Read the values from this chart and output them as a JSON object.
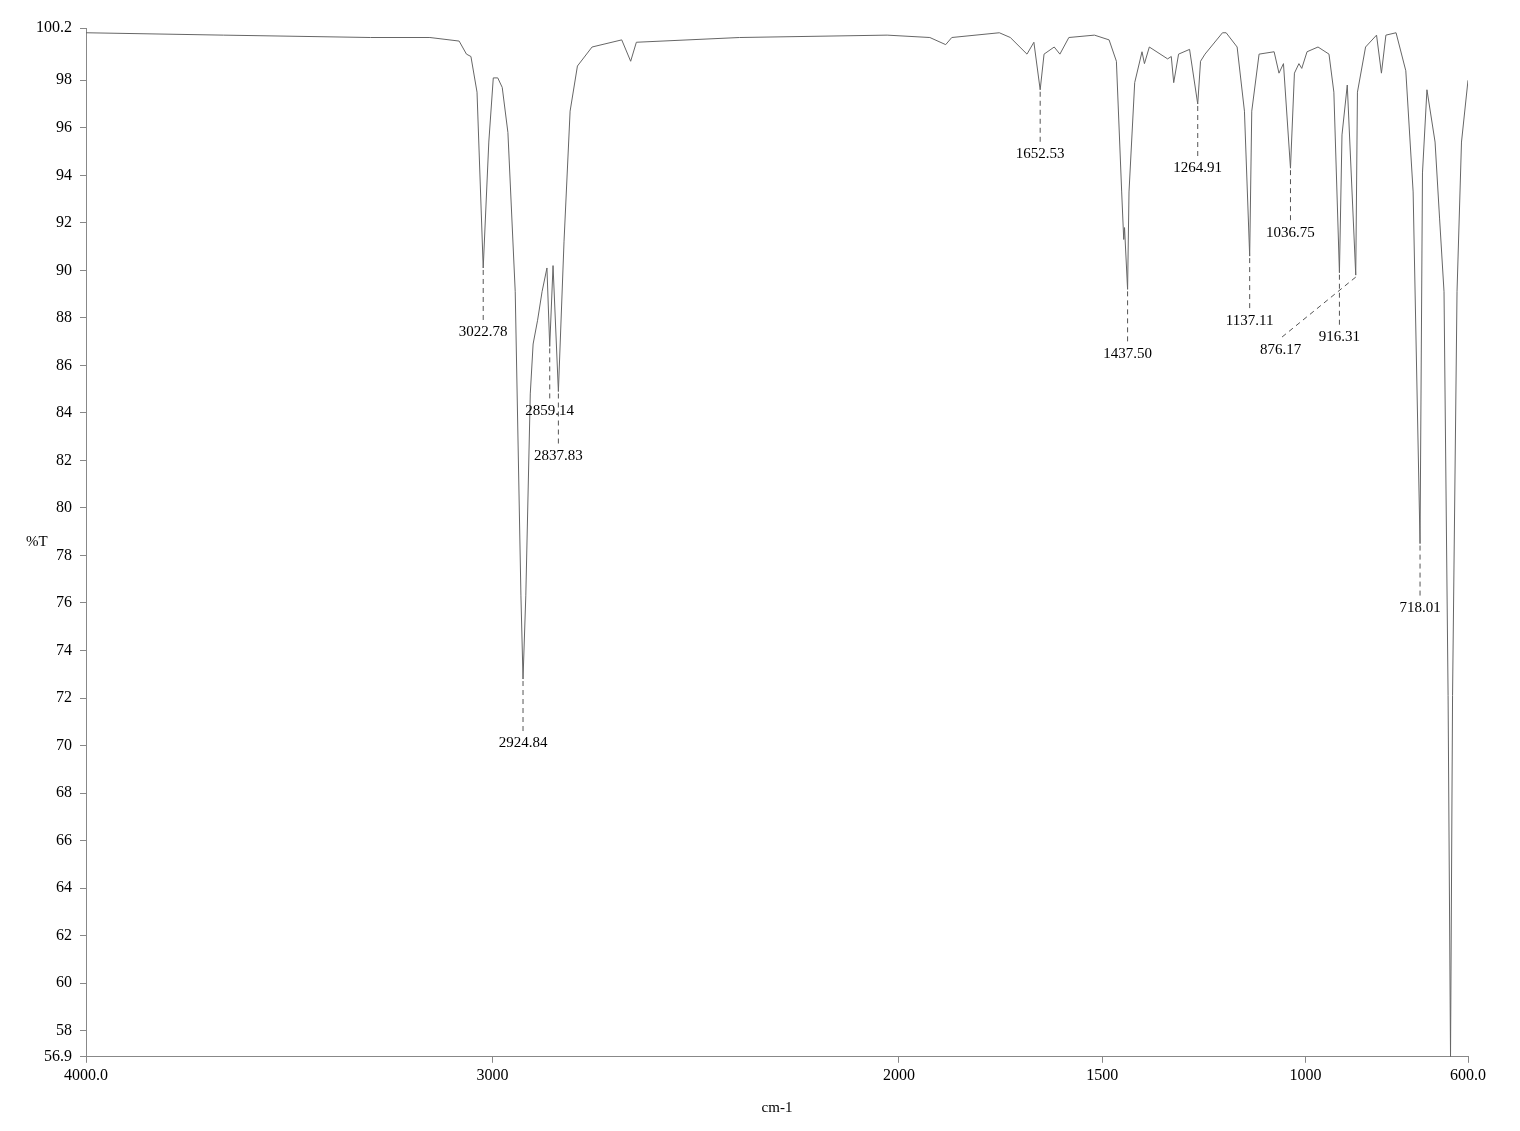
{
  "chart_data": {
    "type": "line",
    "xlabel": "cm-1",
    "ylabel": "%T",
    "x": [
      4000,
      3662,
      3300,
      3154,
      3082,
      3064,
      3053,
      3038,
      3022.78,
      3009,
      2998,
      2987,
      2976,
      2962,
      2944,
      2930,
      2924.84,
      2918,
      2907,
      2900,
      2889,
      2878,
      2866,
      2859.14,
      2851,
      2837.83,
      2824,
      2809,
      2791,
      2755,
      2682,
      2660,
      2646,
      2392,
      2029,
      1924,
      1885,
      1870,
      1753,
      1726,
      1685,
      1668,
      1652.53,
      1643,
      1618,
      1604,
      1582,
      1519,
      1483,
      1465,
      1452,
      1447,
      1445,
      1437.5,
      1434,
      1420,
      1402,
      1396,
      1384,
      1339,
      1330,
      1324,
      1312,
      1285,
      1264.91,
      1258,
      1247,
      1204,
      1195,
      1168,
      1150,
      1137.11,
      1132,
      1114,
      1077,
      1065,
      1054,
      1036.75,
      1027,
      1016,
      1009,
      996,
      969,
      942,
      930,
      916.31,
      910,
      897,
      876.17,
      872,
      852,
      825,
      813,
      802,
      777,
      753,
      735,
      718.01,
      712,
      701,
      681,
      670,
      659,
      649,
      643,
      638,
      627,
      616,
      600
    ],
    "series": [
      {
        "color": "#666666",
        "values": [
          100.0,
          99.9,
          99.8,
          99.8,
          99.65,
          99.1,
          99.0,
          97.5,
          90.1,
          95.4,
          98.1,
          98.1,
          97.7,
          95.8,
          89.1,
          76.3,
          72.8,
          76.3,
          84.8,
          86.9,
          87.9,
          89.1,
          90.1,
          86.8,
          90.2,
          84.9,
          91.2,
          96.7,
          98.6,
          99.4,
          99.7,
          98.8,
          99.6,
          99.8,
          99.9,
          99.8,
          99.5,
          99.8,
          100.0,
          99.8,
          99.1,
          99.6,
          97.6,
          99.1,
          99.4,
          99.1,
          99.8,
          99.9,
          99.7,
          98.8,
          93.3,
          91.3,
          91.8,
          89.2,
          93.3,
          97.9,
          99.2,
          98.7,
          99.4,
          98.9,
          99.0,
          97.9,
          99.1,
          99.3,
          97.0,
          98.8,
          99.1,
          100.0,
          100.0,
          99.4,
          96.7,
          90.6,
          96.7,
          99.1,
          99.2,
          98.3,
          98.7,
          94.3,
          98.3,
          98.7,
          98.5,
          99.2,
          99.4,
          99.1,
          97.5,
          89.9,
          95.7,
          97.8,
          89.8,
          97.5,
          99.4,
          99.9,
          98.3,
          99.9,
          100.0,
          98.4,
          93.3,
          78.5,
          94.1,
          97.6,
          95.4,
          92.2,
          89.1,
          72.1,
          56.9,
          72.1,
          89.1,
          95.4,
          98.0
        ]
      }
    ],
    "xlim": [
      4000,
      600
    ],
    "xticks": [
      {
        "value": 4000,
        "label": "4000.0"
      },
      3000,
      2000,
      1500,
      1000,
      {
        "value": 600,
        "label": "600.0"
      }
    ],
    "ylim": [
      56.9,
      100.2
    ],
    "yticks": [
      56.9,
      58,
      60,
      62,
      64,
      66,
      68,
      70,
      72,
      74,
      76,
      78,
      80,
      82,
      84,
      86,
      88,
      90,
      92,
      94,
      96,
      98,
      100.2
    ],
    "grid": false,
    "legend": false,
    "marker": "none",
    "line_style": "solid",
    "annotations": [
      {
        "text": "3022.78",
        "x": 3022.78,
        "y": 90.1
      },
      {
        "text": "2924.84",
        "x": 2924.84,
        "y": 72.8
      },
      {
        "text": "2859.14",
        "x": 2859.14,
        "y": 86.8
      },
      {
        "text": "2837.83",
        "x": 2837.83,
        "y": 84.9
      },
      {
        "text": "1652.53",
        "x": 1652.53,
        "y": 97.6
      },
      {
        "text": "1437.50",
        "x": 1437.5,
        "y": 89.2
      },
      {
        "text": "1264.91",
        "x": 1264.91,
        "y": 97.0
      },
      {
        "text": "1137.11",
        "x": 1137.11,
        "y": 90.6
      },
      {
        "text": "1036.75",
        "x": 1036.75,
        "y": 94.3
      },
      {
        "text": "916.31",
        "x": 916.31,
        "y": 89.9
      },
      {
        "text": "876.17",
        "x": 876.17,
        "y": 89.8
      },
      {
        "text": "718.01",
        "x": 718.01,
        "y": 78.5
      }
    ]
  }
}
